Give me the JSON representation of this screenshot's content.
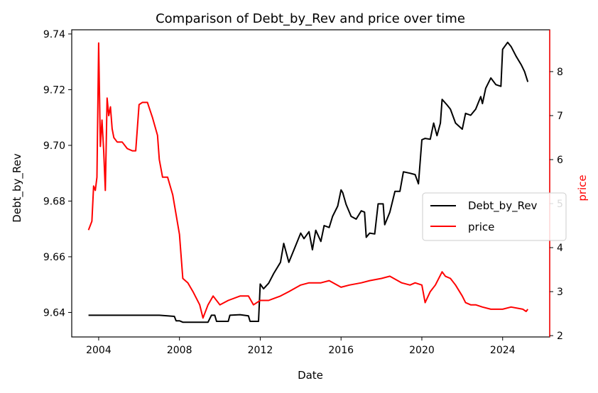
{
  "chart_data": {
    "type": "line",
    "title": "Comparison of Debt_by_Rev and price over time",
    "xlabel": "Date",
    "ylabel_left": "Debt_by_Rev",
    "ylabel_right": "price",
    "x_ticks": [
      "2004",
      "2008",
      "2012",
      "2016",
      "2020",
      "2024"
    ],
    "xlim": [
      "2002-09-01",
      "2026-05-01"
    ],
    "ylim_left": [
      9.6312,
      9.7415
    ],
    "ylim_right": [
      1.97,
      8.95
    ],
    "y_ticks_left": [
      "9.64",
      "9.66",
      "9.68",
      "9.70",
      "9.72",
      "9.74"
    ],
    "y_ticks_right": [
      "2",
      "3",
      "4",
      "5",
      "6",
      "7",
      "8"
    ],
    "legend_position": "center-right",
    "grid": false,
    "series": [
      {
        "name": "Debt_by_Rev",
        "axis": "left",
        "color": "#000000",
        "points": [
          [
            "2003-07-01",
            9.639
          ],
          [
            "2005-06-01",
            9.639
          ],
          [
            "2006-06-01",
            9.639
          ],
          [
            "2007-01-01",
            9.639
          ],
          [
            "2007-06-01",
            9.6388
          ],
          [
            "2007-10-01",
            9.6386
          ],
          [
            "2007-11-01",
            9.637
          ],
          [
            "2008-01-01",
            9.637
          ],
          [
            "2008-03-01",
            9.6365
          ],
          [
            "2009-06-01",
            9.6365
          ],
          [
            "2009-08-01",
            9.639
          ],
          [
            "2009-10-01",
            9.639
          ],
          [
            "2009-11-01",
            9.6368
          ],
          [
            "2010-06-01",
            9.6368
          ],
          [
            "2010-07-01",
            9.639
          ],
          [
            "2011-01-01",
            9.6392
          ],
          [
            "2011-06-01",
            9.6388
          ],
          [
            "2011-07-01",
            9.6368
          ],
          [
            "2011-12-01",
            9.6368
          ],
          [
            "2012-01-01",
            9.6502
          ],
          [
            "2012-03-01",
            9.6485
          ],
          [
            "2012-06-01",
            9.6505
          ],
          [
            "2012-09-01",
            9.654
          ],
          [
            "2013-01-01",
            9.658
          ],
          [
            "2013-03-01",
            9.6648
          ],
          [
            "2013-06-01",
            9.658
          ],
          [
            "2013-09-01",
            9.6625
          ],
          [
            "2014-01-01",
            9.6685
          ],
          [
            "2014-03-01",
            9.6665
          ],
          [
            "2014-06-01",
            9.669
          ],
          [
            "2014-08-01",
            9.6625
          ],
          [
            "2014-10-01",
            9.6695
          ],
          [
            "2015-01-01",
            9.6655
          ],
          [
            "2015-03-01",
            9.6712
          ],
          [
            "2015-06-01",
            9.6705
          ],
          [
            "2015-08-01",
            9.6745
          ],
          [
            "2015-11-01",
            9.6782
          ],
          [
            "2016-01-01",
            9.684
          ],
          [
            "2016-02-01",
            9.683
          ],
          [
            "2016-04-01",
            9.6788
          ],
          [
            "2016-07-01",
            9.6745
          ],
          [
            "2016-10-01",
            9.6735
          ],
          [
            "2017-01-01",
            9.6765
          ],
          [
            "2017-03-01",
            9.676
          ],
          [
            "2017-04-01",
            9.667
          ],
          [
            "2017-06-01",
            9.6685
          ],
          [
            "2017-09-01",
            9.6682
          ],
          [
            "2017-11-01",
            9.679
          ],
          [
            "2018-02-01",
            9.679
          ],
          [
            "2018-03-01",
            9.6715
          ],
          [
            "2018-06-01",
            9.676
          ],
          [
            "2018-09-01",
            9.6835
          ],
          [
            "2018-12-01",
            9.6835
          ],
          [
            "2019-02-01",
            9.6905
          ],
          [
            "2019-06-01",
            9.69
          ],
          [
            "2019-09-01",
            9.6895
          ],
          [
            "2019-11-01",
            9.6862
          ],
          [
            "2020-01-01",
            9.702
          ],
          [
            "2020-03-01",
            9.7025
          ],
          [
            "2020-06-01",
            9.7022
          ],
          [
            "2020-08-01",
            9.708
          ],
          [
            "2020-10-01",
            9.7035
          ],
          [
            "2020-12-01",
            9.708
          ],
          [
            "2021-01-01",
            9.7165
          ],
          [
            "2021-04-01",
            9.7145
          ],
          [
            "2021-06-01",
            9.713
          ],
          [
            "2021-09-01",
            9.708
          ],
          [
            "2022-01-01",
            9.7058
          ],
          [
            "2022-03-01",
            9.7115
          ],
          [
            "2022-06-01",
            9.7108
          ],
          [
            "2022-09-01",
            9.713
          ],
          [
            "2022-12-01",
            9.7175
          ],
          [
            "2023-01-01",
            9.715
          ],
          [
            "2023-03-01",
            9.7205
          ],
          [
            "2023-06-01",
            9.7242
          ],
          [
            "2023-09-01",
            9.7218
          ],
          [
            "2023-12-01",
            9.7212
          ],
          [
            "2024-01-01",
            9.7345
          ],
          [
            "2024-04-01",
            9.737
          ],
          [
            "2024-06-01",
            9.7355
          ],
          [
            "2024-09-01",
            9.732
          ],
          [
            "2024-12-01",
            9.729
          ],
          [
            "2025-02-01",
            9.7265
          ],
          [
            "2025-04-01",
            9.7228
          ]
        ]
      },
      {
        "name": "price",
        "axis": "right",
        "color": "#ff0000",
        "points": [
          [
            "2003-07-01",
            4.4
          ],
          [
            "2003-08-01",
            4.5
          ],
          [
            "2003-09-01",
            4.6
          ],
          [
            "2003-10-01",
            5.4
          ],
          [
            "2003-11-01",
            5.3
          ],
          [
            "2003-12-01",
            5.6
          ],
          [
            "2004-01-01",
            8.65
          ],
          [
            "2004-02-01",
            6.3
          ],
          [
            "2004-03-01",
            6.9
          ],
          [
            "2004-04-01",
            6.2
          ],
          [
            "2004-05-01",
            5.3
          ],
          [
            "2004-06-01",
            7.4
          ],
          [
            "2004-07-01",
            7.0
          ],
          [
            "2004-08-01",
            7.2
          ],
          [
            "2004-09-01",
            6.7
          ],
          [
            "2004-10-01",
            6.5
          ],
          [
            "2004-12-01",
            6.4
          ],
          [
            "2005-03-01",
            6.4
          ],
          [
            "2005-06-01",
            6.25
          ],
          [
            "2005-09-01",
            6.2
          ],
          [
            "2005-11-01",
            6.2
          ],
          [
            "2006-01-01",
            7.25
          ],
          [
            "2006-03-01",
            7.3
          ],
          [
            "2006-06-01",
            7.3
          ],
          [
            "2006-09-01",
            6.95
          ],
          [
            "2006-12-01",
            6.55
          ],
          [
            "2007-01-01",
            6.0
          ],
          [
            "2007-03-01",
            5.6
          ],
          [
            "2007-06-01",
            5.6
          ],
          [
            "2007-09-01",
            5.2
          ],
          [
            "2008-01-01",
            4.3
          ],
          [
            "2008-03-01",
            3.3
          ],
          [
            "2008-06-01",
            3.2
          ],
          [
            "2008-09-01",
            3.0
          ],
          [
            "2009-01-01",
            2.7
          ],
          [
            "2009-03-01",
            2.4
          ],
          [
            "2009-06-01",
            2.7
          ],
          [
            "2009-09-01",
            2.9
          ],
          [
            "2010-01-01",
            2.7
          ],
          [
            "2010-06-01",
            2.8
          ],
          [
            "2011-01-01",
            2.9
          ],
          [
            "2011-06-01",
            2.9
          ],
          [
            "2011-09-01",
            2.7
          ],
          [
            "2012-01-01",
            2.8
          ],
          [
            "2012-06-01",
            2.8
          ],
          [
            "2013-01-01",
            2.9
          ],
          [
            "2013-06-01",
            3.0
          ],
          [
            "2014-01-01",
            3.15
          ],
          [
            "2014-06-01",
            3.2
          ],
          [
            "2015-01-01",
            3.2
          ],
          [
            "2015-06-01",
            3.25
          ],
          [
            "2016-01-01",
            3.1
          ],
          [
            "2016-06-01",
            3.15
          ],
          [
            "2017-01-01",
            3.2
          ],
          [
            "2017-06-01",
            3.25
          ],
          [
            "2018-01-01",
            3.3
          ],
          [
            "2018-06-01",
            3.35
          ],
          [
            "2019-01-01",
            3.2
          ],
          [
            "2019-06-01",
            3.15
          ],
          [
            "2019-09-01",
            3.2
          ],
          [
            "2020-01-01",
            3.15
          ],
          [
            "2020-03-01",
            2.75
          ],
          [
            "2020-06-01",
            3.0
          ],
          [
            "2020-09-01",
            3.15
          ],
          [
            "2021-01-01",
            3.45
          ],
          [
            "2021-03-01",
            3.35
          ],
          [
            "2021-06-01",
            3.3
          ],
          [
            "2021-09-01",
            3.15
          ],
          [
            "2022-01-01",
            2.9
          ],
          [
            "2022-03-01",
            2.75
          ],
          [
            "2022-06-01",
            2.7
          ],
          [
            "2022-09-01",
            2.7
          ],
          [
            "2023-01-01",
            2.65
          ],
          [
            "2023-06-01",
            2.6
          ],
          [
            "2024-01-01",
            2.6
          ],
          [
            "2024-06-01",
            2.65
          ],
          [
            "2025-01-01",
            2.6
          ],
          [
            "2025-03-01",
            2.55
          ],
          [
            "2025-04-01",
            2.6
          ]
        ]
      }
    ]
  }
}
